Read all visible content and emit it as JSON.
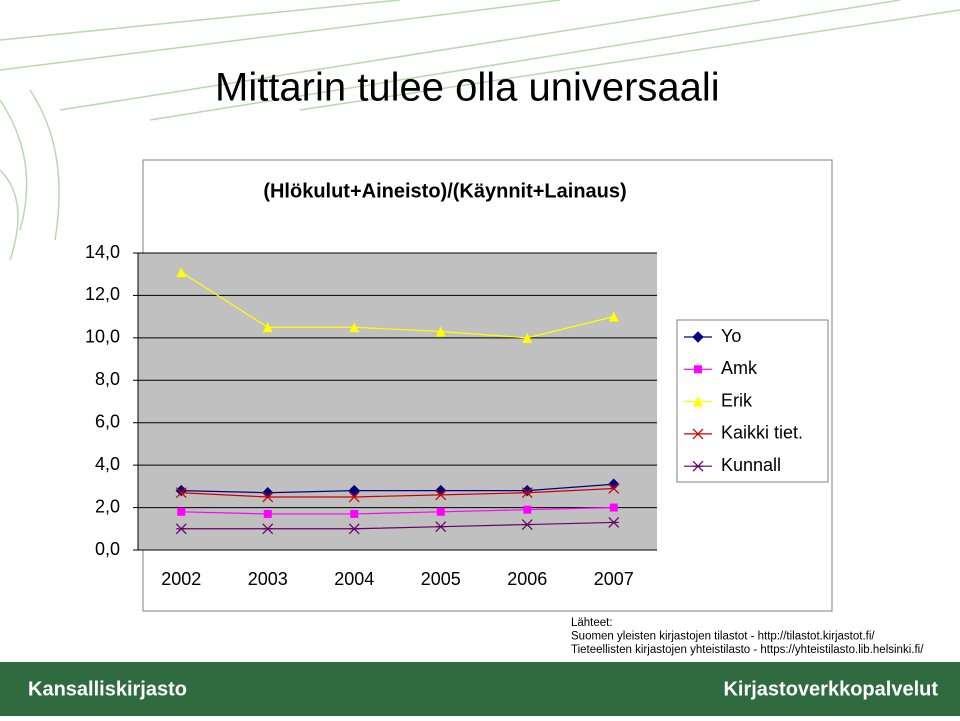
{
  "slide_title": "Mittarin tulee olla universaali",
  "chart_data": {
    "type": "line",
    "title": "(Hlökulut+Aineisto)/(Käynnit+Lainaus)",
    "categories": [
      "2002",
      "2003",
      "2004",
      "2005",
      "2006",
      "2007"
    ],
    "series": [
      {
        "name": "Yo",
        "color": "#000080",
        "marker": "diamond",
        "values": [
          2.8,
          2.7,
          2.8,
          2.8,
          2.8,
          3.1
        ]
      },
      {
        "name": "Amk",
        "color": "#ff00ff",
        "marker": "square",
        "values": [
          1.8,
          1.7,
          1.7,
          1.8,
          1.9,
          2.0
        ]
      },
      {
        "name": "Erik",
        "color": "#ffff00",
        "marker": "triangle",
        "values": [
          13.1,
          10.5,
          10.5,
          10.3,
          10.0,
          11.0
        ]
      },
      {
        "name": "Kaikki tiet.",
        "color": "#cc0000",
        "marker": "x",
        "values": [
          2.7,
          2.5,
          2.5,
          2.6,
          2.7,
          2.9
        ]
      },
      {
        "name": "Kunnall",
        "color": "#660066",
        "marker": "star",
        "values": [
          1.0,
          1.0,
          1.0,
          1.1,
          1.2,
          1.3
        ]
      }
    ],
    "ylim": [
      0,
      14
    ],
    "yticks": [
      {
        "value": 0,
        "label": "0,0"
      },
      {
        "value": 2,
        "label": "2,0"
      },
      {
        "value": 4,
        "label": "4,0"
      },
      {
        "value": 6,
        "label": "6,0"
      },
      {
        "value": 8,
        "label": "8,0"
      },
      {
        "value": 10,
        "label": "10,0"
      },
      {
        "value": 12,
        "label": "12,0"
      },
      {
        "value": 14,
        "label": "14,0"
      }
    ],
    "grid": true,
    "legend": "right"
  },
  "sources": [
    "Lähteet:",
    "Suomen yleisten kirjastojen tilastot - http://tilastot.kirjastot.fi/",
    "Tieteellisten kirjastojen yhteistilasto - https://yhteistilasto.lib.helsinki.fi/"
  ],
  "footer": {
    "left": "Kansalliskirjasto",
    "right": "Kirjastoverkkopalvelut"
  }
}
